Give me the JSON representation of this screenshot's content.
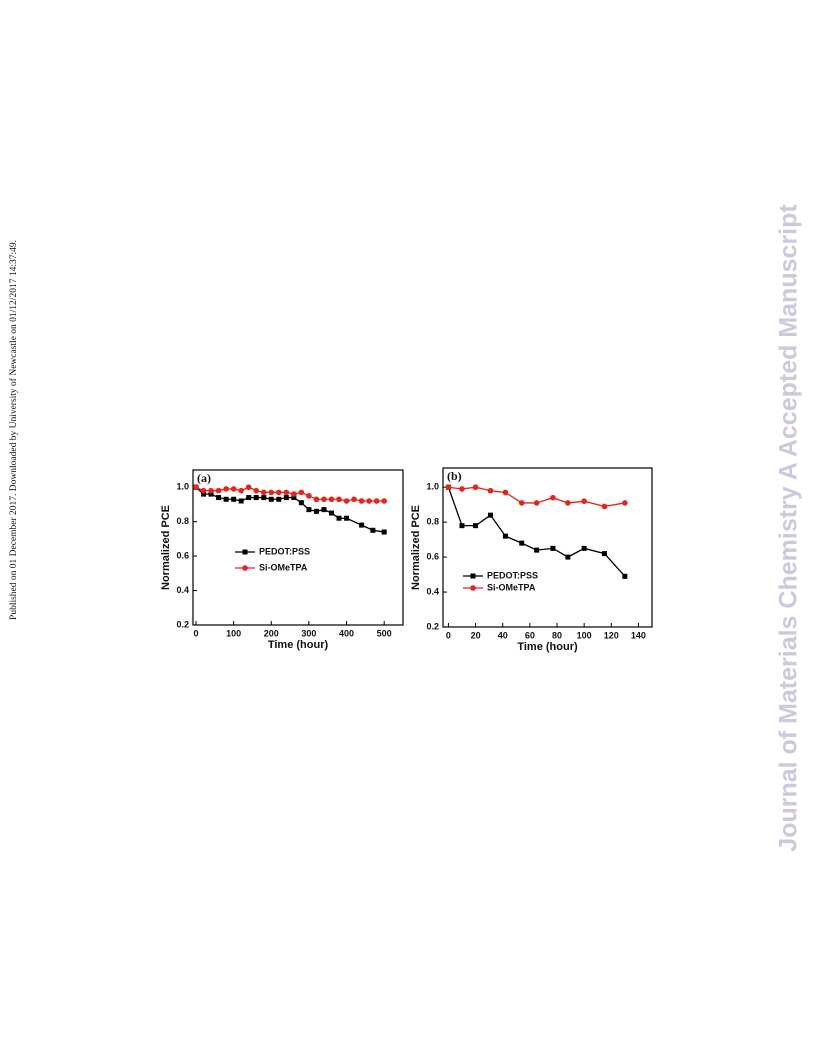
{
  "side_note": "Published on 01 December 2017. Downloaded by University of Newcastle on 01/12/2017 14:37:49.",
  "watermark": "Journal of Materials Chemistry A Accepted Manuscript",
  "chart_data": [
    {
      "type": "line",
      "panel_label": "(a)",
      "x_label": "Time (hour)",
      "y_label": "Normalized PCE",
      "xlim": [
        -8,
        550
      ],
      "xticks": [
        0,
        100,
        200,
        300,
        400,
        500
      ],
      "ylim": [
        0.2,
        1.1
      ],
      "yticks": [
        0.2,
        0.4,
        0.6,
        0.8,
        {
          "value": 1,
          "label": "1.0"
        }
      ],
      "legend": "center left",
      "series": [
        {
          "name": "PEDOT:PSS",
          "color": "#000000",
          "marker": "square",
          "x": [
            0,
            20,
            40,
            60,
            80,
            100,
            120,
            140,
            160,
            180,
            200,
            220,
            240,
            260,
            280,
            300,
            320,
            340,
            360,
            380,
            400,
            440,
            470,
            500
          ],
          "values": [
            1.0,
            0.96,
            0.96,
            0.94,
            0.93,
            0.93,
            0.92,
            0.94,
            0.94,
            0.94,
            0.93,
            0.93,
            0.94,
            0.94,
            0.91,
            0.87,
            0.86,
            0.87,
            0.85,
            0.82,
            0.82,
            0.78,
            0.75,
            0.74
          ]
        },
        {
          "name": "Si-OMeTPA",
          "color": "#e8221c",
          "marker": "circle",
          "x": [
            0,
            20,
            40,
            60,
            80,
            100,
            120,
            140,
            160,
            180,
            200,
            220,
            240,
            260,
            280,
            300,
            320,
            340,
            360,
            380,
            400,
            420,
            440,
            460,
            480,
            500
          ],
          "values": [
            1.0,
            0.98,
            0.98,
            0.98,
            0.99,
            0.99,
            0.98,
            1.0,
            0.98,
            0.97,
            0.97,
            0.97,
            0.97,
            0.96,
            0.97,
            0.95,
            0.93,
            0.93,
            0.93,
            0.93,
            0.92,
            0.93,
            0.92,
            0.92,
            0.92,
            0.92
          ]
        }
      ]
    },
    {
      "type": "line",
      "panel_label": "(b)",
      "x_label": "Time (hour)",
      "y_label": "Normalized PCE",
      "xlim": [
        -4,
        150
      ],
      "xticks": [
        0,
        20,
        40,
        60,
        80,
        100,
        120,
        140
      ],
      "ylim": [
        0.2,
        1.11
      ],
      "yticks": [
        0.2,
        0.4,
        0.6,
        0.8,
        {
          "value": 1,
          "label": "1.0"
        }
      ],
      "legend": "lower left",
      "series": [
        {
          "name": "PEDOT:PSS",
          "color": "#000000",
          "marker": "square",
          "x": [
            0,
            10,
            20,
            31,
            42,
            54,
            65,
            77,
            88,
            100,
            115,
            130
          ],
          "values": [
            1.0,
            0.78,
            0.78,
            0.84,
            0.72,
            0.68,
            0.64,
            0.65,
            0.6,
            0.65,
            0.62,
            0.49
          ]
        },
        {
          "name": "Si-OMeTPA",
          "color": "#e8221c",
          "marker": "circle",
          "x": [
            0,
            10,
            20,
            31,
            42,
            54,
            65,
            77,
            88,
            100,
            115,
            130
          ],
          "values": [
            1.0,
            0.99,
            1.0,
            0.98,
            0.97,
            0.91,
            0.91,
            0.94,
            0.91,
            0.92,
            0.89,
            0.91
          ]
        }
      ]
    }
  ]
}
